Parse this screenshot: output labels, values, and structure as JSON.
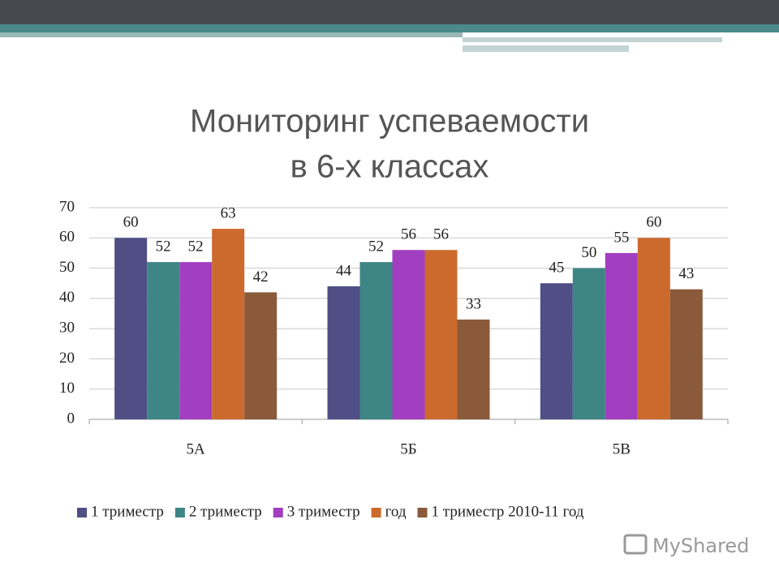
{
  "chart_data": {
    "type": "bar",
    "title": [
      "Мониторинг успеваемости",
      "в 6-х классах"
    ],
    "categories": [
      "5А",
      "5Б",
      "5В"
    ],
    "series": [
      {
        "name": "1 триместр",
        "color": "#4f4f86",
        "values": [
          60,
          44,
          45
        ]
      },
      {
        "name": "2 триместр",
        "color": "#3e8585",
        "values": [
          52,
          52,
          50
        ]
      },
      {
        "name": "3 триместр",
        "color": "#a23fc0",
        "values": [
          52,
          56,
          55
        ]
      },
      {
        "name": "год",
        "color": "#cc6a2e",
        "values": [
          63,
          56,
          60
        ]
      },
      {
        "name": "1 триместр 2010-11 год",
        "color": "#8a5a3a",
        "values": [
          42,
          33,
          43
        ]
      }
    ],
    "ylim": [
      0,
      70
    ],
    "yticks": [
      0,
      10,
      20,
      30,
      40,
      50,
      60,
      70
    ],
    "grid": true,
    "legend": "bottom"
  },
  "watermark": "MyShared"
}
